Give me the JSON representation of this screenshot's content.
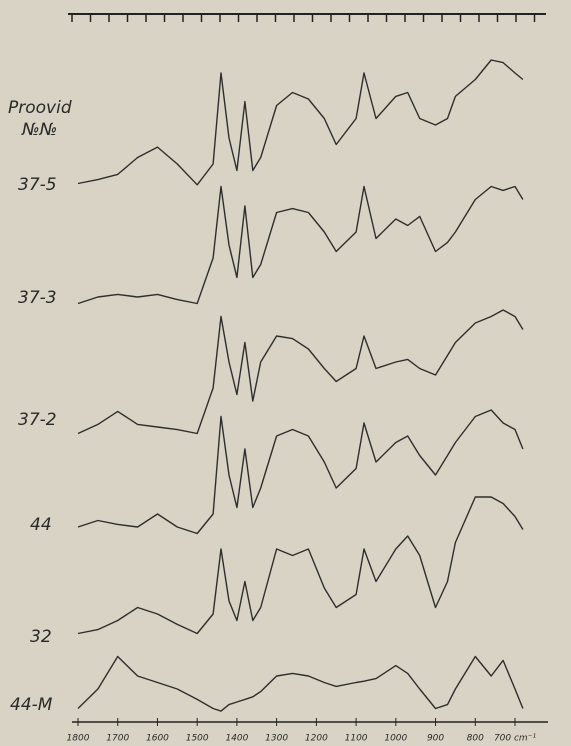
{
  "chart_data": {
    "type": "line",
    "legend_title": [
      "Proovid",
      "№№"
    ],
    "x": [
      1800,
      1750,
      1700,
      1650,
      1600,
      1550,
      1500,
      1460,
      1440,
      1420,
      1400,
      1380,
      1360,
      1340,
      1300,
      1260,
      1220,
      1180,
      1150,
      1100,
      1080,
      1050,
      1000,
      970,
      940,
      900,
      870,
      850,
      800,
      760,
      730,
      700,
      680
    ],
    "xlim": [
      1800,
      700
    ],
    "xticks": [
      1800,
      1700,
      1600,
      1500,
      1400,
      1300,
      1200,
      1100,
      1000,
      900,
      800,
      {
        "value": 700,
        "label": "700 cm⁻¹"
      }
    ],
    "ylim": [
      0,
      120
    ],
    "color": "#2e2e2e",
    "series": [
      {
        "name": "37-5",
        "values": [
          5,
          8,
          12,
          25,
          33,
          20,
          4,
          20,
          90,
          40,
          15,
          68,
          15,
          25,
          65,
          75,
          70,
          55,
          35,
          55,
          90,
          55,
          72,
          75,
          55,
          50,
          55,
          72,
          85,
          100,
          98,
          90,
          85
        ]
      },
      {
        "name": "37-3",
        "values": [
          5,
          10,
          12,
          10,
          12,
          8,
          5,
          40,
          95,
          50,
          25,
          80,
          25,
          35,
          75,
          78,
          75,
          60,
          45,
          60,
          95,
          55,
          70,
          65,
          72,
          45,
          52,
          60,
          85,
          95,
          92,
          95,
          85
        ]
      },
      {
        "name": "37-2",
        "values": [
          5,
          12,
          22,
          12,
          10,
          8,
          5,
          40,
          95,
          60,
          35,
          75,
          30,
          60,
          80,
          78,
          70,
          55,
          45,
          55,
          80,
          55,
          60,
          62,
          55,
          50,
          65,
          75,
          90,
          95,
          100,
          95,
          85
        ]
      },
      {
        "name": "44",
        "values": [
          10,
          15,
          12,
          10,
          20,
          10,
          5,
          20,
          95,
          50,
          25,
          70,
          25,
          40,
          80,
          85,
          80,
          60,
          40,
          55,
          90,
          60,
          75,
          80,
          65,
          50,
          65,
          75,
          95,
          100,
          90,
          85,
          70
        ]
      },
      {
        "name": "32",
        "values": [
          5,
          8,
          15,
          25,
          20,
          12,
          5,
          20,
          70,
          30,
          15,
          45,
          15,
          25,
          70,
          65,
          70,
          40,
          25,
          35,
          70,
          45,
          70,
          80,
          65,
          25,
          45,
          75,
          110,
          110,
          105,
          95,
          85
        ]
      },
      {
        "name": "44-M",
        "values": [
          5,
          20,
          45,
          30,
          25,
          20,
          12,
          5,
          3,
          8,
          10,
          12,
          14,
          18,
          30,
          32,
          30,
          25,
          22,
          25,
          26,
          28,
          38,
          32,
          20,
          5,
          8,
          20,
          45,
          30,
          42,
          20,
          5
        ]
      }
    ]
  }
}
